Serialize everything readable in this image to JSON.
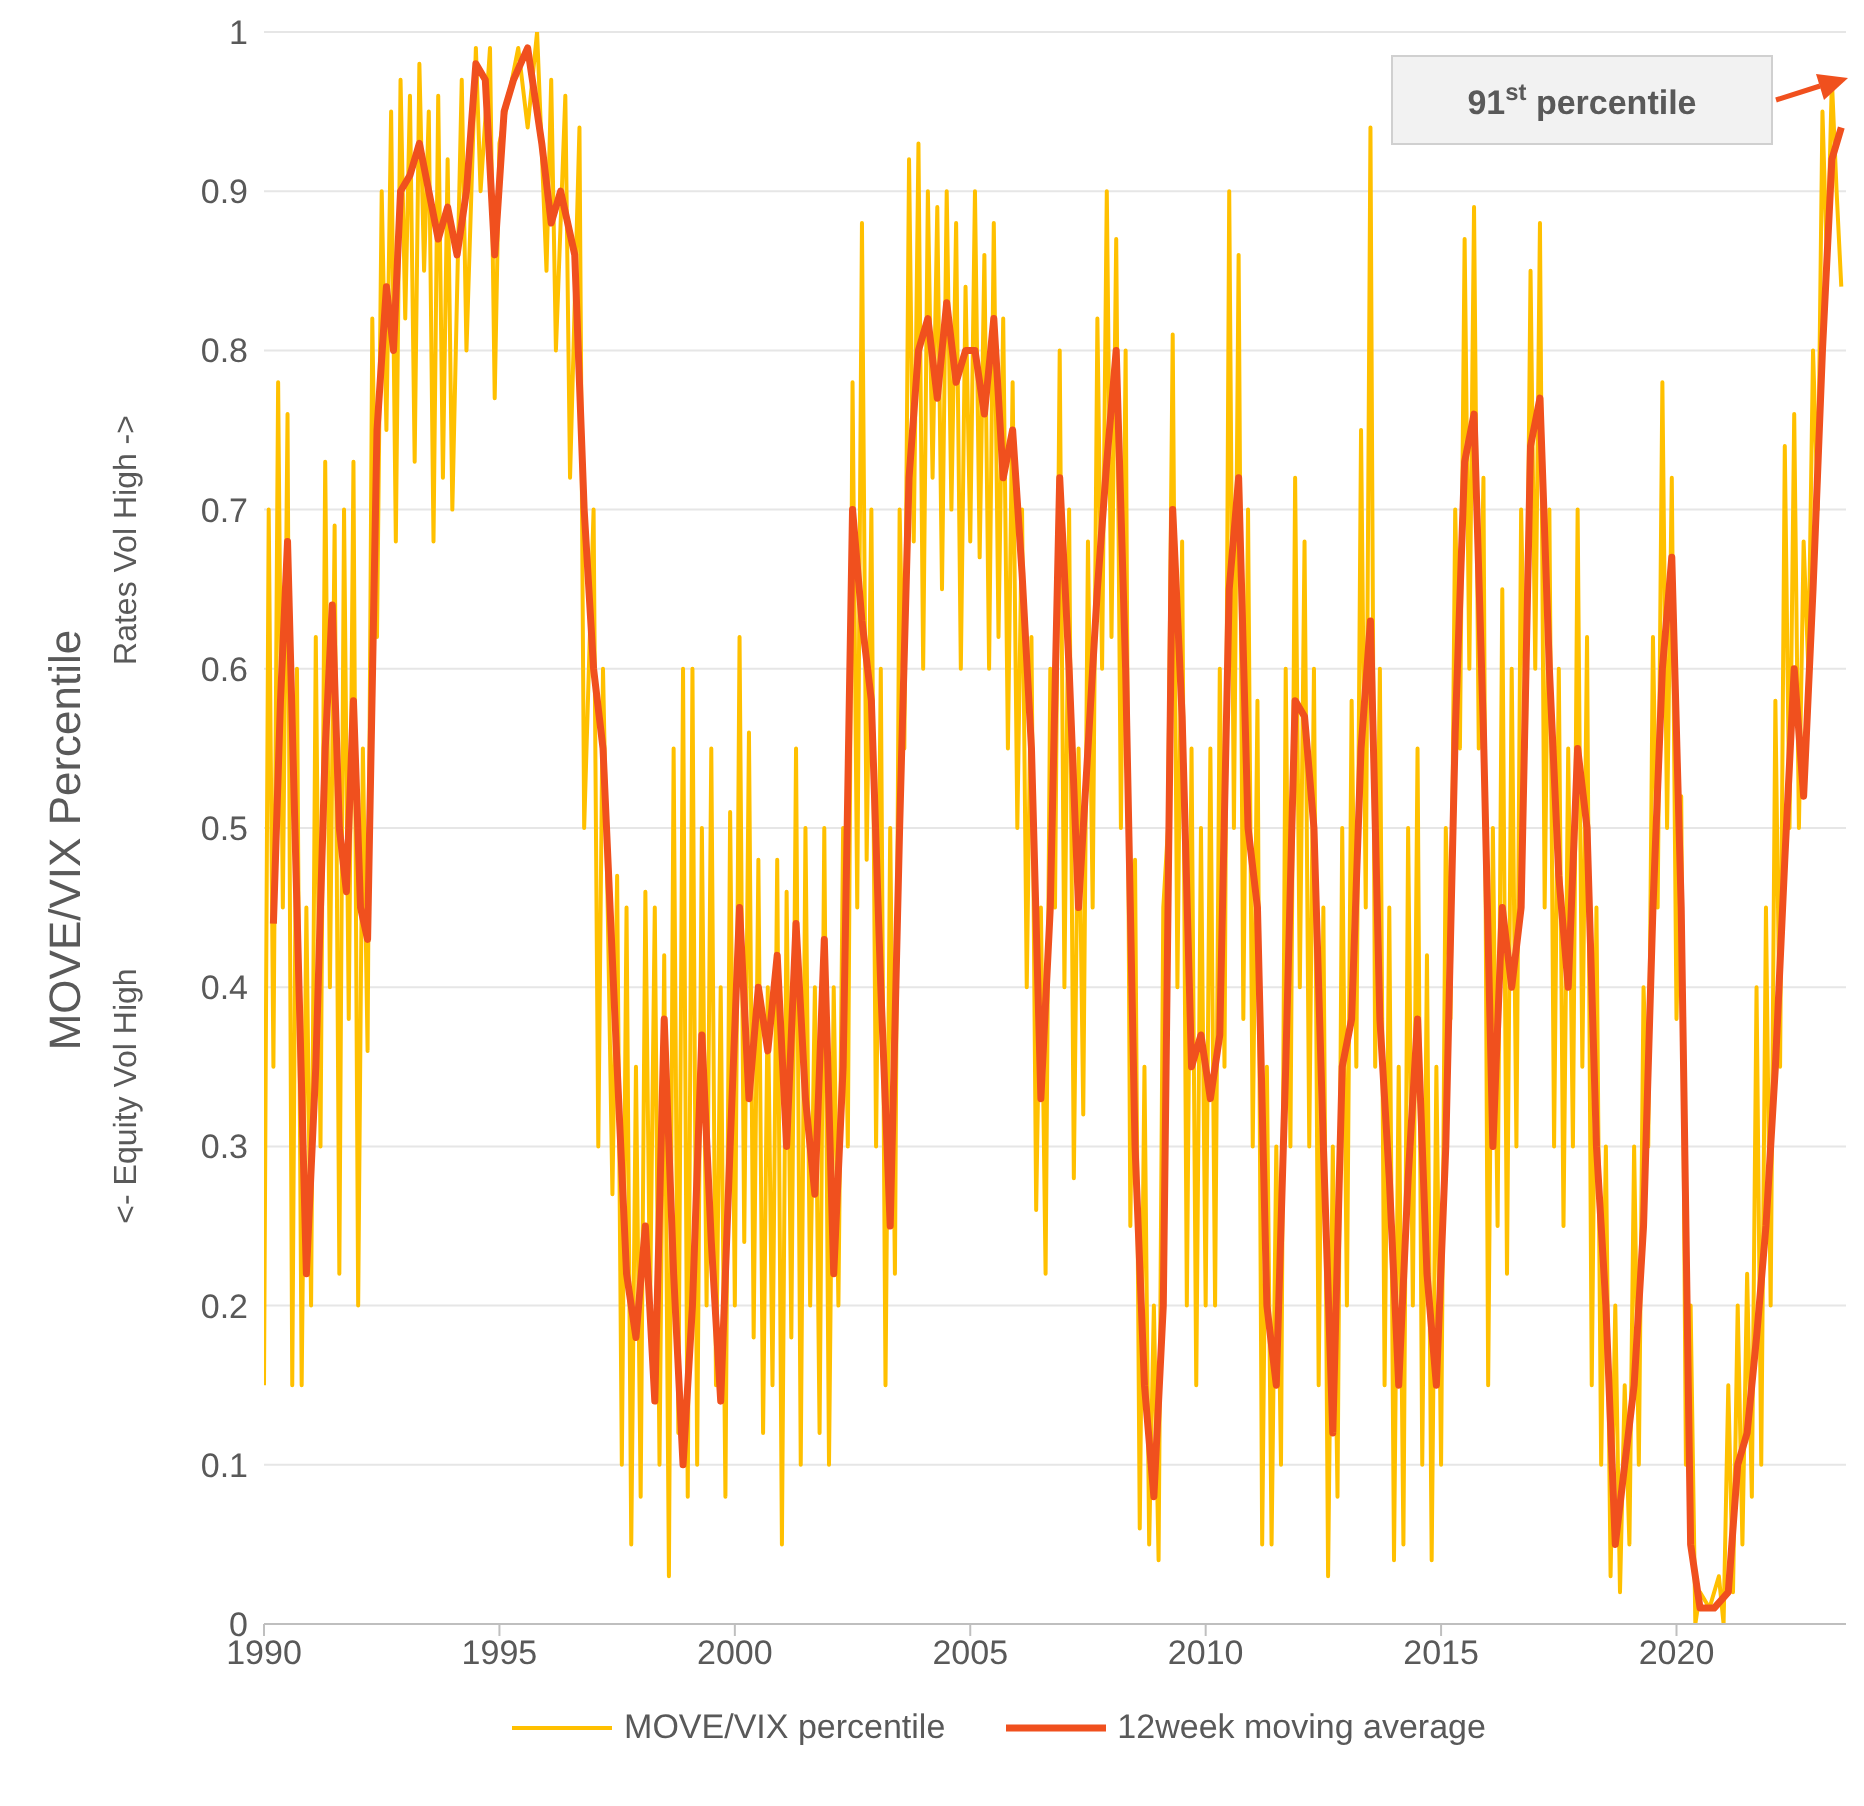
{
  "chart_data": {
    "type": "line",
    "ylabel": "MOVE/VIX Percentile",
    "annotations": [
      "Rates Vol High ->",
      "<- Equity Vol High",
      "91$^{st}$ percentile"
    ],
    "xlim": [
      1990,
      2023.6
    ],
    "xticks": [
      1990,
      1995,
      2000,
      2005,
      2010,
      2015,
      2020
    ],
    "ylim": [
      0,
      1
    ],
    "yticks": [
      0,
      0.1,
      0.2,
      0.3,
      0.4,
      0.5,
      0.6,
      0.7,
      0.8,
      0.9,
      1
    ],
    "grid": "y",
    "legend": "bottom",
    "marker": "none",
    "line_style": "solid",
    "series": [
      {
        "name": "MOVE/VIX percentile",
        "color": "#ffc000",
        "x": [
          1990.0,
          1990.1,
          1990.2,
          1990.3,
          1990.4,
          1990.5,
          1990.6,
          1990.7,
          1990.8,
          1990.9,
          1991.0,
          1991.1,
          1991.2,
          1991.3,
          1991.4,
          1991.5,
          1991.6,
          1991.7,
          1991.8,
          1991.9,
          1992.0,
          1992.1,
          1992.2,
          1992.3,
          1992.4,
          1992.5,
          1992.6,
          1992.7,
          1992.8,
          1992.9,
          1993.0,
          1993.1,
          1993.2,
          1993.3,
          1993.4,
          1993.5,
          1993.6,
          1993.7,
          1993.8,
          1993.9,
          1994.0,
          1994.2,
          1994.3,
          1994.5,
          1994.6,
          1994.8,
          1994.9,
          1995.0,
          1995.2,
          1995.4,
          1995.6,
          1995.8,
          1996.0,
          1996.1,
          1996.2,
          1996.4,
          1996.5,
          1996.7,
          1996.8,
          1997.0,
          1997.1,
          1997.2,
          1997.3,
          1997.4,
          1997.5,
          1997.6,
          1997.7,
          1997.8,
          1997.9,
          1998.0,
          1998.1,
          1998.2,
          1998.3,
          1998.4,
          1998.5,
          1998.6,
          1998.7,
          1998.8,
          1998.9,
          1999.0,
          1999.1,
          1999.2,
          1999.3,
          1999.4,
          1999.5,
          1999.6,
          1999.7,
          1999.8,
          1999.9,
          2000.0,
          2000.1,
          2000.2,
          2000.3,
          2000.4,
          2000.5,
          2000.6,
          2000.7,
          2000.8,
          2000.9,
          2001.0,
          2001.1,
          2001.2,
          2001.3,
          2001.4,
          2001.5,
          2001.6,
          2001.7,
          2001.8,
          2001.9,
          2002.0,
          2002.1,
          2002.2,
          2002.3,
          2002.4,
          2002.5,
          2002.6,
          2002.7,
          2002.8,
          2002.9,
          2003.0,
          2003.1,
          2003.2,
          2003.3,
          2003.4,
          2003.5,
          2003.6,
          2003.7,
          2003.8,
          2003.9,
          2004.0,
          2004.1,
          2004.2,
          2004.3,
          2004.4,
          2004.5,
          2004.6,
          2004.7,
          2004.8,
          2004.9,
          2005.0,
          2005.1,
          2005.2,
          2005.3,
          2005.4,
          2005.5,
          2005.6,
          2005.7,
          2005.8,
          2005.9,
          2006.0,
          2006.1,
          2006.2,
          2006.3,
          2006.4,
          2006.5,
          2006.6,
          2006.7,
          2006.8,
          2006.9,
          2007.0,
          2007.1,
          2007.2,
          2007.3,
          2007.4,
          2007.5,
          2007.6,
          2007.7,
          2007.8,
          2007.9,
          2008.0,
          2008.1,
          2008.2,
          2008.3,
          2008.4,
          2008.5,
          2008.6,
          2008.7,
          2008.8,
          2008.9,
          2009.0,
          2009.1,
          2009.2,
          2009.3,
          2009.4,
          2009.5,
          2009.6,
          2009.7,
          2009.8,
          2009.9,
          2010.0,
          2010.1,
          2010.2,
          2010.3,
          2010.4,
          2010.5,
          2010.6,
          2010.7,
          2010.8,
          2010.9,
          2011.0,
          2011.1,
          2011.2,
          2011.3,
          2011.4,
          2011.5,
          2011.6,
          2011.7,
          2011.8,
          2011.9,
          2012.0,
          2012.1,
          2012.2,
          2012.3,
          2012.4,
          2012.5,
          2012.6,
          2012.7,
          2012.8,
          2012.9,
          2013.0,
          2013.1,
          2013.2,
          2013.3,
          2013.4,
          2013.5,
          2013.6,
          2013.7,
          2013.8,
          2013.9,
          2014.0,
          2014.1,
          2014.2,
          2014.3,
          2014.4,
          2014.5,
          2014.6,
          2014.7,
          2014.8,
          2014.9,
          2015.0,
          2015.1,
          2015.2,
          2015.3,
          2015.4,
          2015.5,
          2015.6,
          2015.7,
          2015.8,
          2015.9,
          2016.0,
          2016.1,
          2016.2,
          2016.3,
          2016.4,
          2016.5,
          2016.6,
          2016.7,
          2016.8,
          2016.9,
          2017.0,
          2017.1,
          2017.2,
          2017.3,
          2017.4,
          2017.5,
          2017.6,
          2017.7,
          2017.8,
          2017.9,
          2018.0,
          2018.1,
          2018.2,
          2018.3,
          2018.4,
          2018.5,
          2018.6,
          2018.7,
          2018.8,
          2018.9,
          2019.0,
          2019.1,
          2019.2,
          2019.3,
          2019.4,
          2019.5,
          2019.6,
          2019.7,
          2019.8,
          2019.9,
          2020.0,
          2020.1,
          2020.2,
          2020.3,
          2020.4,
          2020.5,
          2020.7,
          2020.9,
          2021.0,
          2021.1,
          2021.2,
          2021.3,
          2021.4,
          2021.5,
          2021.6,
          2021.7,
          2021.8,
          2021.9,
          2022.0,
          2022.1,
          2022.2,
          2022.3,
          2022.4,
          2022.5,
          2022.6,
          2022.7,
          2022.8,
          2022.9,
          2023.0,
          2023.1,
          2023.2,
          2023.3,
          2023.4,
          2023.5
        ],
        "values": [
          0.15,
          0.7,
          0.35,
          0.78,
          0.45,
          0.76,
          0.15,
          0.6,
          0.15,
          0.45,
          0.2,
          0.62,
          0.3,
          0.73,
          0.4,
          0.69,
          0.22,
          0.7,
          0.38,
          0.73,
          0.2,
          0.55,
          0.36,
          0.82,
          0.62,
          0.9,
          0.75,
          0.95,
          0.68,
          0.97,
          0.82,
          0.96,
          0.73,
          0.98,
          0.85,
          0.95,
          0.68,
          0.96,
          0.72,
          0.92,
          0.7,
          0.97,
          0.8,
          0.99,
          0.9,
          0.99,
          0.77,
          0.93,
          0.96,
          0.99,
          0.94,
          1.0,
          0.85,
          0.97,
          0.8,
          0.96,
          0.72,
          0.94,
          0.5,
          0.7,
          0.3,
          0.6,
          0.45,
          0.27,
          0.47,
          0.1,
          0.45,
          0.05,
          0.35,
          0.08,
          0.46,
          0.2,
          0.45,
          0.1,
          0.42,
          0.03,
          0.55,
          0.12,
          0.6,
          0.08,
          0.6,
          0.1,
          0.5,
          0.2,
          0.55,
          0.15,
          0.4,
          0.08,
          0.51,
          0.2,
          0.62,
          0.24,
          0.56,
          0.18,
          0.48,
          0.12,
          0.4,
          0.15,
          0.48,
          0.05,
          0.46,
          0.18,
          0.55,
          0.1,
          0.5,
          0.2,
          0.4,
          0.12,
          0.5,
          0.1,
          0.4,
          0.2,
          0.5,
          0.3,
          0.78,
          0.45,
          0.88,
          0.48,
          0.7,
          0.3,
          0.6,
          0.15,
          0.5,
          0.22,
          0.7,
          0.55,
          0.92,
          0.68,
          0.93,
          0.6,
          0.9,
          0.72,
          0.89,
          0.65,
          0.9,
          0.7,
          0.88,
          0.6,
          0.84,
          0.68,
          0.9,
          0.67,
          0.86,
          0.6,
          0.88,
          0.62,
          0.82,
          0.55,
          0.78,
          0.5,
          0.7,
          0.4,
          0.62,
          0.26,
          0.45,
          0.22,
          0.6,
          0.45,
          0.8,
          0.4,
          0.7,
          0.28,
          0.55,
          0.32,
          0.68,
          0.45,
          0.82,
          0.6,
          0.9,
          0.62,
          0.87,
          0.5,
          0.8,
          0.25,
          0.48,
          0.06,
          0.35,
          0.05,
          0.2,
          0.04,
          0.45,
          0.5,
          0.81,
          0.4,
          0.68,
          0.2,
          0.55,
          0.15,
          0.5,
          0.2,
          0.55,
          0.2,
          0.6,
          0.35,
          0.9,
          0.5,
          0.86,
          0.38,
          0.7,
          0.3,
          0.58,
          0.05,
          0.35,
          0.05,
          0.3,
          0.1,
          0.6,
          0.3,
          0.72,
          0.4,
          0.68,
          0.3,
          0.6,
          0.15,
          0.45,
          0.03,
          0.3,
          0.08,
          0.5,
          0.2,
          0.58,
          0.35,
          0.75,
          0.45,
          0.94,
          0.35,
          0.6,
          0.15,
          0.45,
          0.04,
          0.35,
          0.05,
          0.5,
          0.2,
          0.55,
          0.1,
          0.42,
          0.04,
          0.35,
          0.1,
          0.5,
          0.38,
          0.7,
          0.55,
          0.87,
          0.6,
          0.89,
          0.55,
          0.72,
          0.15,
          0.5,
          0.25,
          0.65,
          0.22,
          0.6,
          0.3,
          0.7,
          0.55,
          0.85,
          0.6,
          0.88,
          0.45,
          0.7,
          0.3,
          0.6,
          0.25,
          0.55,
          0.3,
          0.7,
          0.35,
          0.62,
          0.15,
          0.45,
          0.1,
          0.3,
          0.03,
          0.2,
          0.02,
          0.15,
          0.05,
          0.3,
          0.1,
          0.4,
          0.3,
          0.62,
          0.45,
          0.78,
          0.5,
          0.72,
          0.38,
          0.52,
          0.1,
          0.2,
          0.0,
          0.02,
          0.01,
          0.03,
          0.0,
          0.15,
          0.02,
          0.2,
          0.05,
          0.22,
          0.08,
          0.4,
          0.1,
          0.45,
          0.2,
          0.58,
          0.35,
          0.74,
          0.5,
          0.76,
          0.5,
          0.68,
          0.6,
          0.8,
          0.7,
          0.95,
          0.85,
          0.97,
          0.9,
          0.84
        ]
      },
      {
        "name": "12week moving average",
        "color": "#f0501e",
        "x": [
          1990.2,
          1990.35,
          1990.5,
          1990.7,
          1990.9,
          1991.1,
          1991.3,
          1991.45,
          1991.6,
          1991.75,
          1991.9,
          1992.05,
          1992.2,
          1992.4,
          1992.6,
          1992.75,
          1992.9,
          1993.1,
          1993.3,
          1993.5,
          1993.7,
          1993.9,
          1994.1,
          1994.3,
          1994.5,
          1994.7,
          1994.9,
          1995.1,
          1995.3,
          1995.6,
          1995.9,
          1996.1,
          1996.3,
          1996.6,
          1996.8,
          1997.0,
          1997.2,
          1997.5,
          1997.7,
          1997.9,
          1998.1,
          1998.3,
          1998.5,
          1998.7,
          1998.9,
          1999.1,
          1999.3,
          1999.5,
          1999.7,
          1999.9,
          2000.1,
          2000.3,
          2000.5,
          2000.7,
          2000.9,
          2001.1,
          2001.3,
          2001.5,
          2001.7,
          2001.9,
          2002.1,
          2002.3,
          2002.5,
          2002.7,
          2002.9,
          2003.1,
          2003.3,
          2003.5,
          2003.7,
          2003.9,
          2004.1,
          2004.3,
          2004.5,
          2004.7,
          2004.9,
          2005.1,
          2005.3,
          2005.5,
          2005.7,
          2005.9,
          2006.1,
          2006.3,
          2006.5,
          2006.7,
          2006.9,
          2007.1,
          2007.3,
          2007.5,
          2007.7,
          2007.9,
          2008.1,
          2008.3,
          2008.5,
          2008.7,
          2008.9,
          2009.1,
          2009.3,
          2009.5,
          2009.7,
          2009.9,
          2010.1,
          2010.3,
          2010.5,
          2010.7,
          2010.9,
          2011.1,
          2011.3,
          2011.5,
          2011.7,
          2011.9,
          2012.1,
          2012.3,
          2012.5,
          2012.7,
          2012.9,
          2013.1,
          2013.3,
          2013.5,
          2013.7,
          2013.9,
          2014.1,
          2014.3,
          2014.5,
          2014.7,
          2014.9,
          2015.1,
          2015.3,
          2015.5,
          2015.7,
          2015.9,
          2016.1,
          2016.3,
          2016.5,
          2016.7,
          2016.9,
          2017.1,
          2017.3,
          2017.5,
          2017.7,
          2017.9,
          2018.1,
          2018.3,
          2018.5,
          2018.7,
          2018.9,
          2019.1,
          2019.3,
          2019.5,
          2019.7,
          2019.9,
          2020.1,
          2020.3,
          2020.5,
          2020.8,
          2021.1,
          2021.3,
          2021.5,
          2021.7,
          2021.9,
          2022.1,
          2022.3,
          2022.5,
          2022.7,
          2022.9,
          2023.1,
          2023.3,
          2023.5
        ],
        "values": [
          0.44,
          0.58,
          0.68,
          0.45,
          0.22,
          0.35,
          0.55,
          0.64,
          0.5,
          0.46,
          0.58,
          0.45,
          0.43,
          0.75,
          0.84,
          0.8,
          0.9,
          0.91,
          0.93,
          0.9,
          0.87,
          0.89,
          0.86,
          0.9,
          0.98,
          0.97,
          0.86,
          0.95,
          0.97,
          0.99,
          0.93,
          0.88,
          0.9,
          0.86,
          0.7,
          0.6,
          0.55,
          0.35,
          0.22,
          0.18,
          0.25,
          0.14,
          0.38,
          0.22,
          0.1,
          0.2,
          0.37,
          0.24,
          0.14,
          0.3,
          0.45,
          0.33,
          0.4,
          0.36,
          0.42,
          0.3,
          0.44,
          0.33,
          0.27,
          0.43,
          0.22,
          0.35,
          0.7,
          0.63,
          0.58,
          0.4,
          0.25,
          0.5,
          0.72,
          0.8,
          0.82,
          0.77,
          0.83,
          0.78,
          0.8,
          0.8,
          0.76,
          0.82,
          0.72,
          0.75,
          0.66,
          0.55,
          0.33,
          0.45,
          0.72,
          0.6,
          0.45,
          0.55,
          0.65,
          0.73,
          0.8,
          0.6,
          0.3,
          0.15,
          0.08,
          0.2,
          0.7,
          0.57,
          0.35,
          0.37,
          0.33,
          0.37,
          0.65,
          0.72,
          0.5,
          0.45,
          0.2,
          0.15,
          0.35,
          0.58,
          0.57,
          0.5,
          0.3,
          0.12,
          0.35,
          0.38,
          0.55,
          0.63,
          0.38,
          0.28,
          0.15,
          0.28,
          0.38,
          0.22,
          0.15,
          0.3,
          0.56,
          0.73,
          0.76,
          0.56,
          0.3,
          0.45,
          0.4,
          0.45,
          0.74,
          0.77,
          0.6,
          0.47,
          0.4,
          0.55,
          0.5,
          0.3,
          0.2,
          0.05,
          0.1,
          0.15,
          0.25,
          0.45,
          0.6,
          0.67,
          0.45,
          0.05,
          0.01,
          0.01,
          0.02,
          0.1,
          0.12,
          0.18,
          0.25,
          0.35,
          0.48,
          0.6,
          0.52,
          0.65,
          0.8,
          0.92,
          0.94
        ]
      }
    ]
  }
}
